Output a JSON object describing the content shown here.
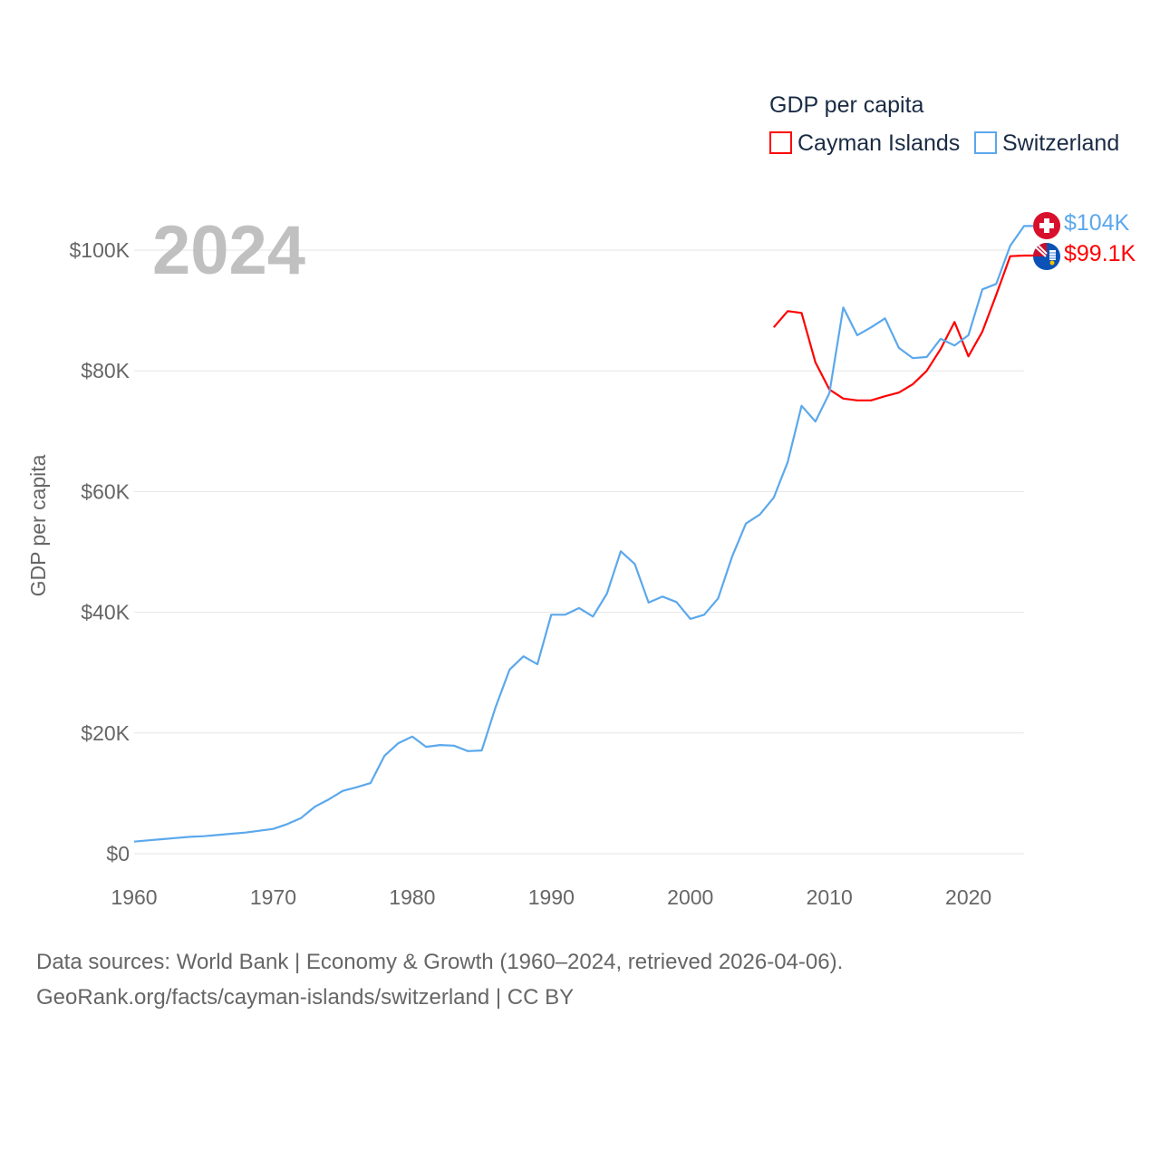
{
  "chart_data": {
    "type": "line",
    "title": "GDP per capita",
    "year_label": "2024",
    "xlabel": "",
    "ylabel": "GDP per capita",
    "xlim": [
      1960,
      2024
    ],
    "ylim": [
      0,
      110000
    ],
    "grid": true,
    "legend_placement": "top-right",
    "x_ticks": [
      1960,
      1970,
      1980,
      1990,
      2000,
      2010,
      2020
    ],
    "x_tick_labels": [
      "1960",
      "1970",
      "1980",
      "1990",
      "2000",
      "2010",
      "2020"
    ],
    "y_ticks": [
      0,
      20000,
      40000,
      60000,
      80000,
      100000
    ],
    "y_tick_labels": [
      "$0",
      "$20K",
      "$40K",
      "$60K",
      "$80K",
      "$100K"
    ],
    "series": [
      {
        "name": "Cayman Islands",
        "color": "#ff0000",
        "end_label": "$99.1K",
        "flag_icon": "cayman-islands-flag",
        "x": [
          2006,
          2007,
          2008,
          2009,
          2010,
          2011,
          2012,
          2013,
          2014,
          2015,
          2016,
          2017,
          2018,
          2019,
          2020,
          2021,
          2022,
          2023,
          2024
        ],
        "values": [
          87200,
          89900,
          89600,
          81400,
          76900,
          75400,
          75100,
          75100,
          75800,
          76400,
          77800,
          80000,
          83600,
          88100,
          82400,
          86500,
          92600,
          99000,
          99100
        ]
      },
      {
        "name": "Switzerland",
        "color": "#5ba8ec",
        "end_label": "$104K",
        "flag_icon": "switzerland-flag",
        "x": [
          1960,
          1961,
          1962,
          1963,
          1964,
          1965,
          1966,
          1967,
          1968,
          1969,
          1970,
          1971,
          1972,
          1973,
          1974,
          1975,
          1976,
          1977,
          1978,
          1979,
          1980,
          1981,
          1982,
          1983,
          1984,
          1985,
          1986,
          1987,
          1988,
          1989,
          1990,
          1991,
          1992,
          1993,
          1994,
          1995,
          1996,
          1997,
          1998,
          1999,
          2000,
          2001,
          2002,
          2003,
          2004,
          2005,
          2006,
          2007,
          2008,
          2009,
          2010,
          2011,
          2012,
          2013,
          2014,
          2015,
          2016,
          2017,
          2018,
          2019,
          2020,
          2021,
          2022,
          2023,
          2024
        ],
        "values": [
          2000,
          2200,
          2400,
          2600,
          2800,
          2900,
          3100,
          3300,
          3500,
          3800,
          4100,
          4900,
          5900,
          7800,
          9000,
          10400,
          11000,
          11700,
          16200,
          18300,
          19400,
          17700,
          18000,
          17900,
          17000,
          17100,
          24300,
          30500,
          32700,
          31400,
          39600,
          39600,
          40700,
          39300,
          43100,
          50100,
          48000,
          41600,
          42600,
          41700,
          38900,
          39600,
          42300,
          49200,
          54700,
          56200,
          59000,
          64900,
          74200,
          71600,
          76300,
          90500,
          85900,
          87200,
          88700,
          83800,
          82100,
          82300,
          85300,
          84200,
          85900,
          93500,
          94400,
          100700,
          104000
        ]
      }
    ]
  },
  "footer": {
    "line1": "Data sources: World Bank | Economy & Growth (1960–2024, retrieved 2026-04-06).",
    "line2": "GeoRank.org/facts/cayman-islands/switzerland | CC BY"
  }
}
